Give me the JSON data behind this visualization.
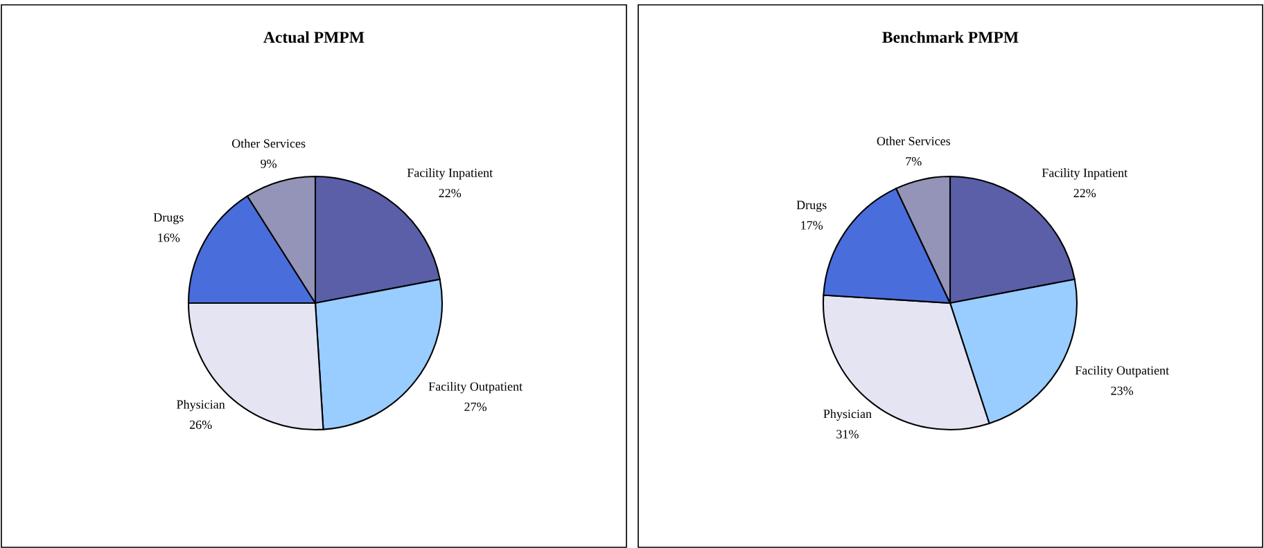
{
  "chart_data": [
    {
      "type": "pie",
      "title": "Actual PMPM",
      "categories": [
        "Facility Inpatient",
        "Facility Outpatient",
        "Physician",
        "Drugs",
        "Other Services"
      ],
      "values": [
        22,
        27,
        26,
        16,
        9
      ],
      "value_labels": [
        "22%",
        "27%",
        "26%",
        "16%",
        "9%"
      ],
      "colors": [
        "#5a5fa8",
        "#99ccff",
        "#e4e4f2",
        "#4a6ddc",
        "#9494b8"
      ],
      "legend": false
    },
    {
      "type": "pie",
      "title": "Benchmark PMPM",
      "categories": [
        "Facility Inpatient",
        "Facility Outpatient",
        "Physician",
        "Drugs",
        "Other Services"
      ],
      "values": [
        22,
        23,
        31,
        17,
        7
      ],
      "value_labels": [
        "22%",
        "23%",
        "31%",
        "17%",
        "7%"
      ],
      "colors": [
        "#5a5fa8",
        "#99ccff",
        "#e4e4f2",
        "#4a6ddc",
        "#9494b8"
      ],
      "legend": false
    }
  ]
}
